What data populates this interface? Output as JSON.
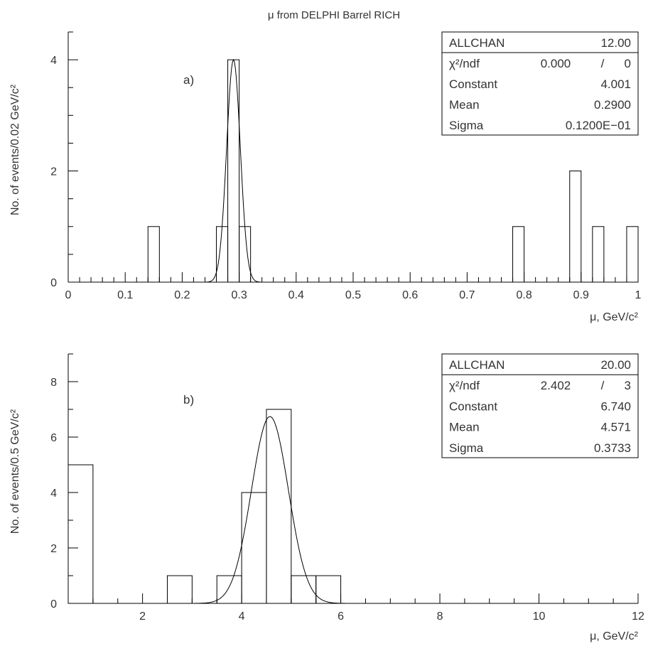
{
  "title": "μ from DELPHI Barrel RICH",
  "chart_data": [
    {
      "type": "bar",
      "panel_label": "a)",
      "xlim": [
        0,
        1
      ],
      "ylim": [
        0,
        4.5
      ],
      "xlabel": "μ, GeV/c²",
      "ylabel": "No. of events/0.02 GeV/c²",
      "x_ticks": [
        {
          "v": 0,
          "label": "0"
        },
        {
          "v": 0.1,
          "label": "0.1"
        },
        {
          "v": 0.2,
          "label": "0.2"
        },
        {
          "v": 0.3,
          "label": "0.3"
        },
        {
          "v": 0.4,
          "label": "0.4"
        },
        {
          "v": 0.5,
          "label": "0.5"
        },
        {
          "v": 0.6,
          "label": "0.6"
        },
        {
          "v": 0.7,
          "label": "0.7"
        },
        {
          "v": 0.8,
          "label": "0.8"
        },
        {
          "v": 0.9,
          "label": "0.9"
        },
        {
          "v": 1,
          "label": "1"
        }
      ],
      "y_ticks": [
        {
          "v": 0,
          "label": "0"
        },
        {
          "v": 2,
          "label": "2"
        },
        {
          "v": 4,
          "label": "4"
        }
      ],
      "bins": [
        {
          "x0": 0.14,
          "x1": 0.16,
          "y": 1
        },
        {
          "x0": 0.26,
          "x1": 0.28,
          "y": 1
        },
        {
          "x0": 0.28,
          "x1": 0.3,
          "y": 4
        },
        {
          "x0": 0.3,
          "x1": 0.32,
          "y": 1
        },
        {
          "x0": 0.78,
          "x1": 0.8,
          "y": 1
        },
        {
          "x0": 0.88,
          "x1": 0.9,
          "y": 2
        },
        {
          "x0": 0.92,
          "x1": 0.94,
          "y": 1
        },
        {
          "x0": 0.98,
          "x1": 1.0,
          "y": 1
        }
      ],
      "fit": {
        "constant": 4.001,
        "mean": 0.29,
        "sigma": 0.012
      },
      "stats": {
        "name": "ALLCHAN",
        "entries": "12.00",
        "chi2_label": "χ²/ndf",
        "chi2": "0.000",
        "slash": "/",
        "ndf": "0",
        "constant_label": "Constant",
        "constant": "4.001",
        "mean_label": "Mean",
        "mean": "0.2900",
        "sigma_label": "Sigma",
        "sigma": "0.1200E−01"
      }
    },
    {
      "type": "bar",
      "panel_label": "b)",
      "xlim": [
        0.5,
        12
      ],
      "ylim": [
        0,
        9
      ],
      "xlabel": "μ, GeV/c²",
      "ylabel": "No. of events/0.5 GeV/c²",
      "x_ticks": [
        {
          "v": 2,
          "label": "2"
        },
        {
          "v": 4,
          "label": "4"
        },
        {
          "v": 6,
          "label": "6"
        },
        {
          "v": 8,
          "label": "8"
        },
        {
          "v": 10,
          "label": "10"
        },
        {
          "v": 12,
          "label": "12"
        }
      ],
      "y_ticks": [
        {
          "v": 0,
          "label": "0"
        },
        {
          "v": 2,
          "label": "2"
        },
        {
          "v": 4,
          "label": "4"
        },
        {
          "v": 6,
          "label": "6"
        },
        {
          "v": 8,
          "label": "8"
        }
      ],
      "bins": [
        {
          "x0": 0.5,
          "x1": 1.0,
          "y": 5
        },
        {
          "x0": 2.5,
          "x1": 3.0,
          "y": 1
        },
        {
          "x0": 3.5,
          "x1": 4.0,
          "y": 1
        },
        {
          "x0": 4.0,
          "x1": 4.5,
          "y": 4
        },
        {
          "x0": 4.5,
          "x1": 5.0,
          "y": 7
        },
        {
          "x0": 5.0,
          "x1": 5.5,
          "y": 1
        },
        {
          "x0": 5.5,
          "x1": 6.0,
          "y": 1
        }
      ],
      "fit": {
        "constant": 6.74,
        "mean": 4.571,
        "sigma": 0.3733
      },
      "stats": {
        "name": "ALLCHAN",
        "entries": "20.00",
        "chi2_label": "χ²/ndf",
        "chi2": "2.402",
        "slash": "/",
        "ndf": "3",
        "constant_label": "Constant",
        "constant": "6.740",
        "mean_label": "Mean",
        "mean": "4.571",
        "sigma_label": "Sigma",
        "sigma": "0.3733"
      }
    }
  ]
}
